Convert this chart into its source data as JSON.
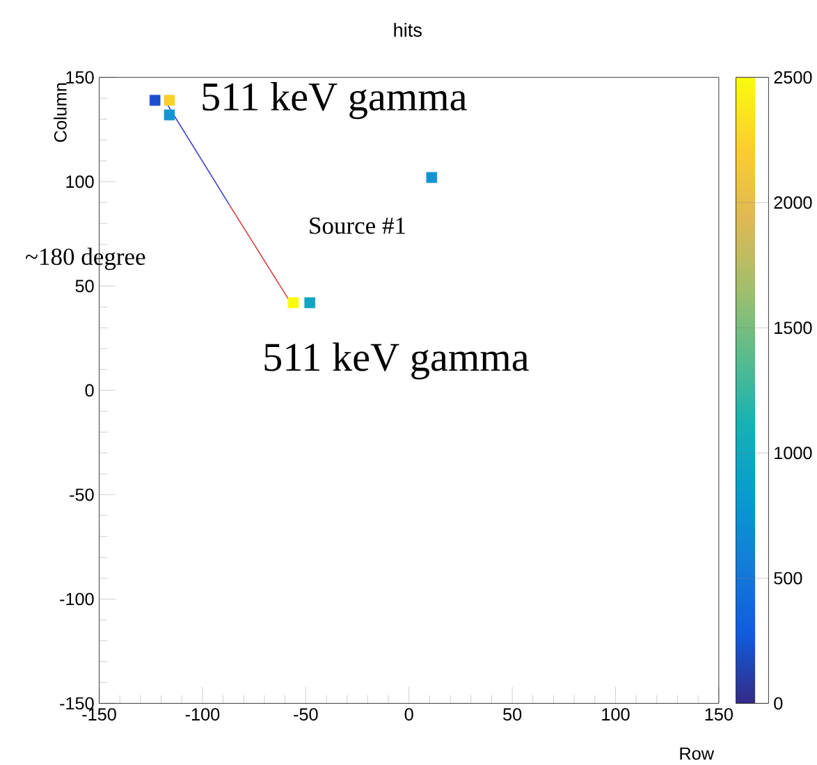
{
  "chart_data": {
    "type": "scatter",
    "title": "hits",
    "xlabel": "Row",
    "ylabel": "Column",
    "xlim": [
      -150,
      150
    ],
    "ylim": [
      -150,
      150
    ],
    "xticks": [
      -150,
      -100,
      -50,
      0,
      50,
      100,
      150
    ],
    "yticks": [
      -150,
      -100,
      -50,
      0,
      50,
      100,
      150
    ],
    "clim": [
      0,
      2500
    ],
    "cticks": [
      0,
      500,
      1000,
      1500,
      2000,
      2500
    ],
    "series": [
      {
        "marker": "square",
        "x": [
          -123,
          -116,
          -116,
          -56,
          -48,
          11
        ],
        "values": [
          139,
          139,
          132,
          42,
          42,
          102
        ],
        "colors": [
          "#1a4fd0",
          "#f9d02a",
          "#1496d2",
          "#f9fb0e",
          "#10a6c3",
          "#1493d2"
        ]
      },
      {
        "type": "line",
        "x": [
          -117,
          -87
        ],
        "values": [
          137,
          89
        ],
        "color": "#3a3ad0"
      },
      {
        "type": "line",
        "x": [
          -87,
          -56
        ],
        "values": [
          89,
          40
        ],
        "color": "#d03a3a"
      }
    ],
    "annotations": [
      "511 keV gamma",
      "511 keV gamma",
      "Source #1",
      "~180 degree"
    ]
  }
}
